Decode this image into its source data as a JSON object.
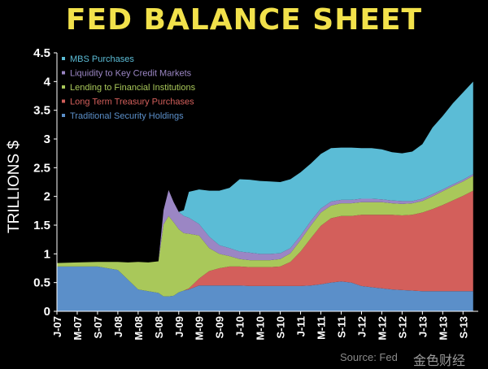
{
  "title": "FED BALANCE SHEET",
  "source_text": "Source: Fed",
  "watermark_text": "金色财经",
  "chart_data": {
    "type": "area",
    "stacked": true,
    "title": "FED BALANCE SHEET",
    "ylabel": "TRILLIONS $",
    "xlabel": "",
    "ylim": [
      0,
      4.5
    ],
    "yticks": [
      "0",
      "0.5",
      "1",
      "1.5",
      "2",
      "2.5",
      "3",
      "3.5",
      "4",
      "4.5"
    ],
    "xticks": [
      "J-07",
      "M-07",
      "S-07",
      "J-08",
      "M-08",
      "S-08",
      "J-09",
      "M-09",
      "S-09",
      "J-10",
      "M-10",
      "S-10",
      "J-11",
      "M-11",
      "S-11",
      "J-12",
      "M-12",
      "S-12",
      "J-13",
      "M-13",
      "S-13"
    ],
    "legend_position": "top-left",
    "grid": false,
    "x": [
      "2007-01",
      "2007-05",
      "2007-09",
      "2008-01",
      "2008-03",
      "2008-05",
      "2008-07",
      "2008-09",
      "2008-10",
      "2008-11",
      "2008-12",
      "2009-01",
      "2009-02",
      "2009-03",
      "2009-05",
      "2009-07",
      "2009-09",
      "2009-11",
      "2010-01",
      "2010-03",
      "2010-05",
      "2010-07",
      "2010-09",
      "2010-11",
      "2011-01",
      "2011-03",
      "2011-05",
      "2011-07",
      "2011-09",
      "2011-11",
      "2012-01",
      "2012-03",
      "2012-05",
      "2012-07",
      "2012-09",
      "2012-11",
      "2013-01",
      "2013-03",
      "2013-05",
      "2013-07",
      "2013-09",
      "2013-11"
    ],
    "series": [
      {
        "name": "Traditional Security Holdings",
        "color": "#5b8fc9",
        "values": [
          0.78,
          0.78,
          0.78,
          0.72,
          0.55,
          0.38,
          0.35,
          0.32,
          0.26,
          0.26,
          0.27,
          0.33,
          0.36,
          0.38,
          0.45,
          0.45,
          0.45,
          0.45,
          0.45,
          0.44,
          0.44,
          0.44,
          0.44,
          0.44,
          0.44,
          0.45,
          0.47,
          0.5,
          0.52,
          0.5,
          0.44,
          0.42,
          0.4,
          0.38,
          0.37,
          0.36,
          0.35,
          0.35,
          0.35,
          0.35,
          0.35,
          0.35
        ]
      },
      {
        "name": "Long Term Treasury Purchases",
        "color": "#d35f5b",
        "values": [
          0,
          0,
          0,
          0,
          0,
          0,
          0,
          0,
          0,
          0,
          0,
          0,
          0,
          0.02,
          0.12,
          0.25,
          0.3,
          0.33,
          0.33,
          0.33,
          0.33,
          0.33,
          0.34,
          0.42,
          0.6,
          0.82,
          1.02,
          1.12,
          1.14,
          1.16,
          1.24,
          1.26,
          1.28,
          1.3,
          1.3,
          1.32,
          1.37,
          1.43,
          1.5,
          1.58,
          1.66,
          1.75
        ]
      },
      {
        "name": "Lending to Financial Institutions",
        "color": "#a9c85a",
        "values": [
          0.06,
          0.07,
          0.08,
          0.14,
          0.3,
          0.48,
          0.5,
          0.55,
          1.25,
          1.4,
          1.28,
          1.1,
          1.0,
          0.95,
          0.75,
          0.4,
          0.25,
          0.18,
          0.13,
          0.12,
          0.12,
          0.12,
          0.13,
          0.15,
          0.2,
          0.22,
          0.23,
          0.22,
          0.22,
          0.22,
          0.22,
          0.22,
          0.22,
          0.2,
          0.2,
          0.2,
          0.2,
          0.22,
          0.24,
          0.25,
          0.25,
          0.26
        ]
      },
      {
        "name": "Liquidity to Key Credit Markets",
        "color": "#9b86c4",
        "values": [
          0,
          0,
          0,
          0,
          0,
          0,
          0,
          0,
          0.25,
          0.45,
          0.35,
          0.3,
          0.3,
          0.28,
          0.2,
          0.2,
          0.15,
          0.14,
          0.13,
          0.13,
          0.11,
          0.11,
          0.1,
          0.09,
          0.08,
          0.08,
          0.07,
          0.07,
          0.06,
          0.06,
          0.06,
          0.06,
          0.05,
          0.05,
          0.05,
          0.04,
          0.04,
          0.04,
          0.03,
          0.03,
          0.03,
          0.03
        ]
      },
      {
        "name": "MBS Purchases",
        "color": "#5bbcd6",
        "values": [
          0,
          0,
          0,
          0,
          0,
          0,
          0,
          0,
          0,
          0,
          0,
          0,
          0.1,
          0.45,
          0.6,
          0.8,
          0.95,
          1.05,
          1.26,
          1.27,
          1.27,
          1.26,
          1.24,
          1.2,
          1.1,
          1.0,
          0.95,
          0.93,
          0.91,
          0.91,
          0.88,
          0.88,
          0.87,
          0.84,
          0.83,
          0.86,
          0.95,
          1.16,
          1.28,
          1.41,
          1.52,
          1.61
        ]
      }
    ]
  }
}
